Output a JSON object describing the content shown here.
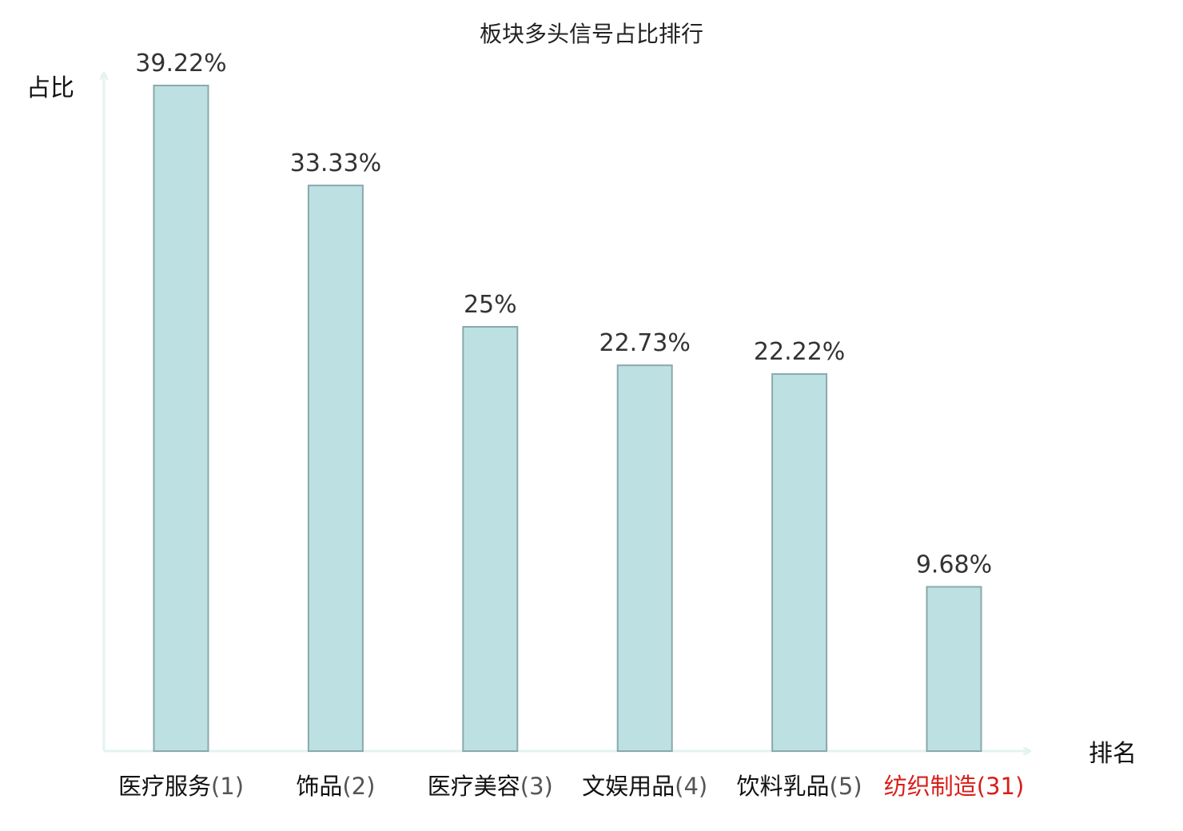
{
  "chart_data": {
    "type": "bar",
    "title": "板块多头信号占比排行",
    "xlabel": "排名",
    "ylabel": "占比",
    "categories": [
      {
        "name": "医疗服务",
        "rank": "(1)",
        "highlight": false
      },
      {
        "name": "饰品",
        "rank": "(2)",
        "highlight": false
      },
      {
        "name": "医疗美容",
        "rank": "(3)",
        "highlight": false
      },
      {
        "name": "文娱用品",
        "rank": "(4)",
        "highlight": false
      },
      {
        "name": "饮料乳品",
        "rank": "(5)",
        "highlight": false
      },
      {
        "name": "纺织制造",
        "rank": "(31)",
        "highlight": true
      }
    ],
    "values": [
      39.22,
      33.33,
      25,
      22.73,
      22.22,
      9.68
    ],
    "value_labels": [
      "39.22%",
      "33.33%",
      "25%",
      "22.73%",
      "22.22%",
      "9.68%"
    ],
    "ylim": [
      0,
      39.22
    ],
    "grid": false,
    "legend": "none"
  },
  "colors": {
    "bar_fill": "#bde0e3",
    "bar_stroke": "#8aa9ab",
    "axis": "#e3f3f1",
    "text": "#333333",
    "category_name": "#111111",
    "category_rank": "#555555",
    "highlight": "#d91e18"
  }
}
